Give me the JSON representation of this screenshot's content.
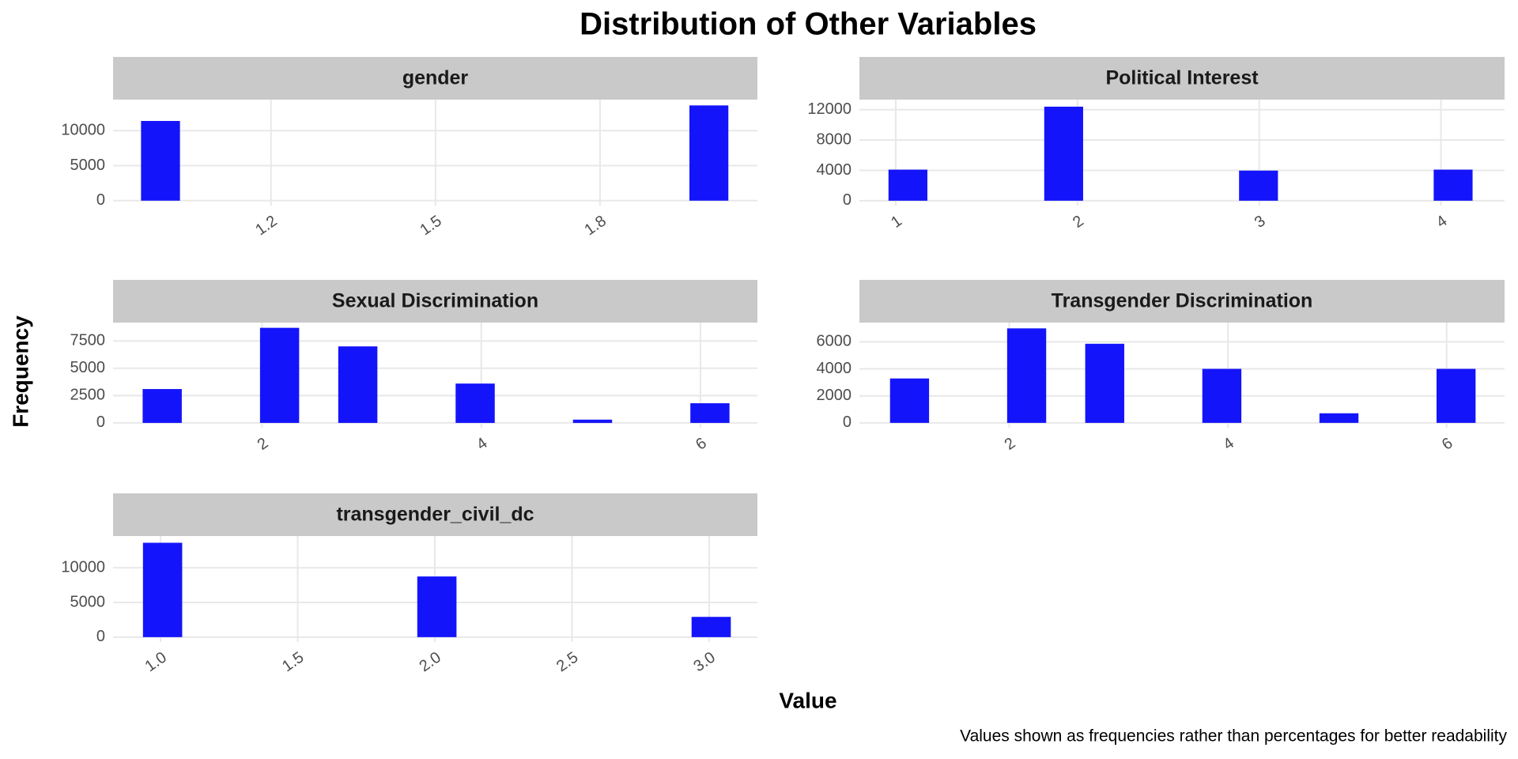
{
  "title": "Distribution of Other Variables",
  "x_label": "Value",
  "y_label": "Frequency",
  "caption": "Values shown as frequencies rather than percentages for better readability",
  "chart_data": [
    {
      "type": "histogram",
      "title": "gender",
      "color": "#1414fb",
      "grid": true,
      "bins": [
        0.963,
        1.034,
        1.106,
        1.177,
        1.249,
        1.32,
        1.391,
        1.463,
        1.534,
        1.606,
        1.677,
        1.749,
        1.82,
        1.891,
        1.963,
        2.034
      ],
      "values": [
        11390,
        0,
        0,
        0,
        0,
        0,
        0,
        0,
        0,
        0,
        0,
        0,
        0,
        0,
        13610
      ],
      "xlim": [
        0.912,
        2.087
      ],
      "xticks": [
        1.2,
        1.5,
        1.8
      ],
      "ylim": [
        -700,
        14440
      ],
      "yticks": [
        0,
        5000,
        10000
      ]
    },
    {
      "type": "histogram",
      "title": "Political Interest",
      "color": "#1414fb",
      "grid": true,
      "bins": [
        0.96,
        1.174,
        1.389,
        1.603,
        1.817,
        2.031,
        2.246,
        2.46,
        2.674,
        2.889,
        3.103,
        3.317,
        3.531,
        3.746,
        3.96,
        4.174
      ],
      "values": [
        4100,
        0,
        0,
        0,
        12400,
        0,
        0,
        0,
        0,
        3970,
        0,
        0,
        0,
        0,
        4100
      ],
      "xlim": [
        0.8,
        4.35
      ],
      "xticks": [
        1,
        2,
        3,
        4
      ],
      "ylim": [
        -640,
        13330
      ],
      "yticks": [
        0,
        4000,
        8000,
        12000
      ]
    },
    {
      "type": "histogram",
      "title": "Sexual Discrimination",
      "color": "#1414fb",
      "grid": true,
      "bins": [
        0.91,
        1.267,
        1.624,
        1.981,
        2.338,
        2.695,
        3.052,
        3.409,
        3.766,
        4.123,
        4.48,
        4.837,
        5.194,
        5.551,
        5.908,
        6.265
      ],
      "values": [
        3100,
        0,
        0,
        8700,
        0,
        7000,
        0,
        0,
        3600,
        0,
        0,
        300,
        0,
        0,
        1800
      ],
      "xlim": [
        0.64,
        6.52
      ],
      "xticks": [
        2,
        4,
        6
      ],
      "ylim": [
        -440,
        9180
      ],
      "yticks": [
        0,
        2500,
        5000,
        7500
      ]
    },
    {
      "type": "histogram",
      "title": "Transgender Discrimination",
      "color": "#1414fb",
      "grid": true,
      "bins": [
        0.91,
        1.267,
        1.624,
        1.981,
        2.338,
        2.695,
        3.052,
        3.409,
        3.766,
        4.123,
        4.48,
        4.837,
        5.194,
        5.551,
        5.908,
        6.265
      ],
      "values": [
        3290,
        0,
        0,
        7000,
        0,
        5860,
        0,
        0,
        4000,
        0,
        0,
        710,
        0,
        0,
        4000
      ],
      "xlim": [
        0.63,
        6.53
      ],
      "xticks": [
        2,
        4,
        6
      ],
      "ylim": [
        -360,
        7430
      ],
      "yticks": [
        0,
        2000,
        4000,
        6000
      ]
    },
    {
      "type": "histogram",
      "title": "transgender_civil_dc",
      "color": "#1414fb",
      "grid": true,
      "bins": [
        0.936,
        1.079,
        1.222,
        1.365,
        1.507,
        1.65,
        1.793,
        1.936,
        2.079,
        2.222,
        2.365,
        2.508,
        2.65,
        2.793,
        2.936,
        3.079
      ],
      "values": [
        13610,
        0,
        0,
        0,
        0,
        0,
        0,
        8750,
        0,
        0,
        0,
        0,
        0,
        0,
        2920
      ],
      "xlim": [
        0.827,
        3.176
      ],
      "xticks": [
        {
          "value": 1,
          "label": "1.0"
        },
        {
          "value": 1.5,
          "label": "1.5"
        },
        {
          "value": 2,
          "label": "2.0"
        },
        {
          "value": 2.5,
          "label": "2.5"
        },
        {
          "value": 3,
          "label": "3.0"
        }
      ],
      "ylim": [
        -700,
        14580
      ],
      "yticks": [
        0,
        5000,
        10000
      ]
    }
  ]
}
